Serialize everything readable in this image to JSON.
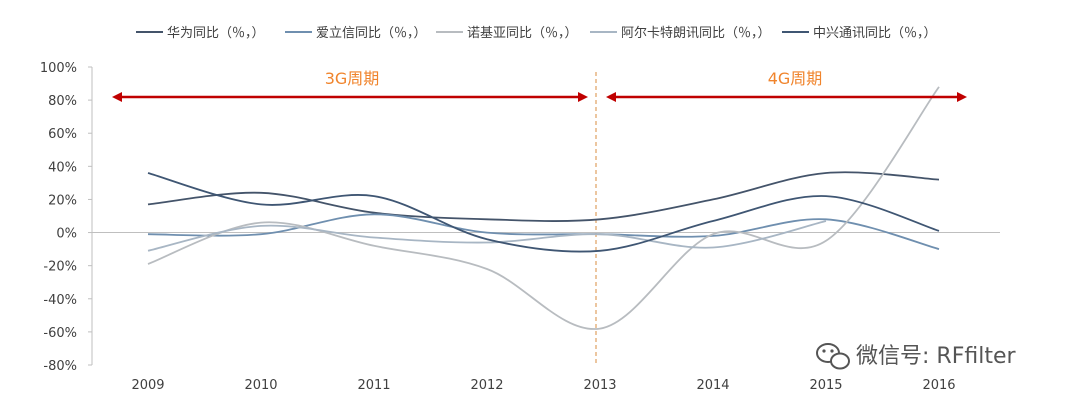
{
  "chart_data": {
    "type": "line",
    "x": [
      "2009",
      "2010",
      "2011",
      "2012",
      "2013",
      "2014",
      "2015",
      "2016"
    ],
    "ylim": [
      -80,
      100
    ],
    "yticks": [
      "100%",
      "80%",
      "60%",
      "40%",
      "20%",
      "0%",
      "-20%",
      "-40%",
      "-60%",
      "-80%"
    ],
    "grid": false,
    "legend_position": "top",
    "series": [
      {
        "name": "华为同比（％，）",
        "color": "#44546a",
        "values": [
          17,
          24,
          12,
          8,
          8,
          20,
          36,
          32
        ]
      },
      {
        "name": "爱立信同比（％，）",
        "color": "#6f8faf",
        "values": [
          -1,
          -1,
          11,
          0,
          -1,
          -2,
          8,
          -10
        ]
      },
      {
        "name": "诺基亚同比（％，）",
        "color": "#b8bcc0",
        "values": [
          -19,
          6,
          -8,
          -22,
          -58,
          -1,
          -5,
          88
        ]
      },
      {
        "name": "阿尔卡特朗讯同比（％，）",
        "color": "#a8b6c4",
        "values": [
          -11,
          4,
          -3,
          -6,
          -1,
          -9,
          7,
          null
        ]
      },
      {
        "name": "中兴通讯同比（％，）",
        "color": "#3f5673",
        "values": [
          36,
          17,
          22,
          -4,
          -11,
          7,
          22,
          1
        ]
      }
    ],
    "annotations": [
      {
        "text": "3G周期",
        "from": "2009",
        "to": "2013"
      },
      {
        "text": "4G周期",
        "from": "2013",
        "to": "2016"
      }
    ]
  },
  "watermark": {
    "text": "微信号: RFfilter",
    "icon": "wechat-icon"
  }
}
